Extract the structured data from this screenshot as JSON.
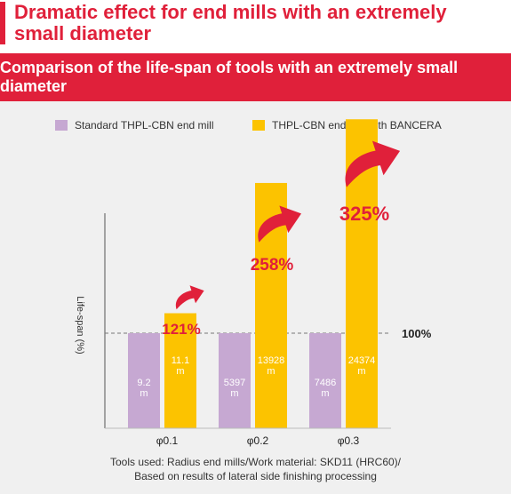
{
  "heading": {
    "line1": "Dramatic effect for end mills with an extremely",
    "line2": "small diameter"
  },
  "banner": "Comparison of the life-span of tools with an extremely small diameter",
  "footnote": {
    "line1": "Tools used: Radius end mills/Work material: SKD11 (HRC60)/",
    "line2": "Based on results of lateral side finishing processing"
  },
  "colors": {
    "accent": "#e0203a",
    "standard": "#c6a8d2",
    "bancera": "#fcc300",
    "panel": "#f0f0f0"
  },
  "chart_data": {
    "type": "bar",
    "title": "Comparison of the life-span of tools with an extremely small diameter",
    "ylabel": "Life-span (%)",
    "xlabel": "",
    "categories": [
      "φ0.1",
      "φ0.2",
      "φ0.3"
    ],
    "ylim": [
      0,
      375
    ],
    "reference_line": {
      "value": 100,
      "label": "100%"
    },
    "legend_position": "top",
    "series": [
      {
        "name": "Standard THPL-CBN end mill",
        "color": "#c6a8d2",
        "values": [
          100,
          100,
          100
        ],
        "labels": [
          [
            "9.2",
            "m"
          ],
          [
            "5397",
            "m"
          ],
          [
            "7486",
            "m"
          ]
        ]
      },
      {
        "name": "THPL-CBN end mill with BANCERA",
        "color": "#fcc300",
        "values": [
          121,
          258,
          325
        ],
        "labels": [
          [
            "11.1",
            "m"
          ],
          [
            "13928",
            "m"
          ],
          [
            "24374",
            "m"
          ]
        ]
      }
    ],
    "annotations": [
      "121%",
      "258%",
      "325%"
    ]
  }
}
